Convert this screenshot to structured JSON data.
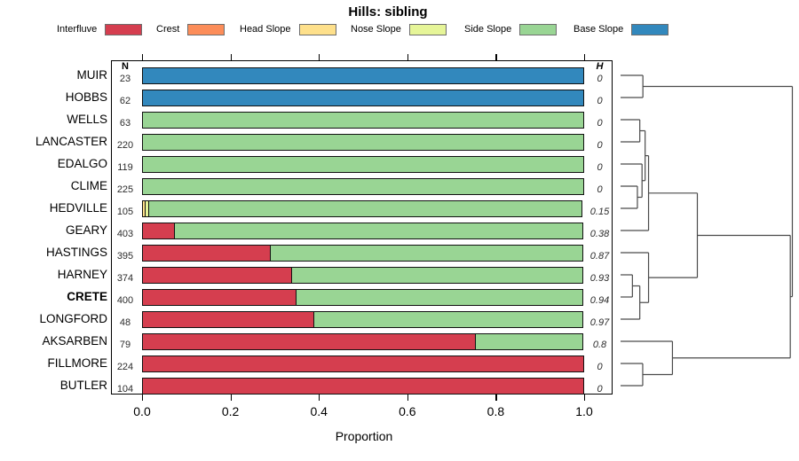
{
  "title": "Hills: sibling",
  "xlabel": "Proportion",
  "columns": {
    "n_header": "N",
    "h_header": "H"
  },
  "x_ticks": [
    "0.0",
    "0.2",
    "0.4",
    "0.6",
    "0.8",
    "1.0"
  ],
  "legend": [
    {
      "label": "Interfluve",
      "color": "#D53E4F"
    },
    {
      "label": "Crest",
      "color": "#FC8D59"
    },
    {
      "label": "Head Slope",
      "color": "#FEE08B"
    },
    {
      "label": "Nose Slope",
      "color": "#E6F598"
    },
    {
      "label": "Side Slope",
      "color": "#99D594"
    },
    {
      "label": "Base Slope",
      "color": "#3288BD"
    }
  ],
  "chart_data": {
    "type": "bar",
    "orientation": "horizontal-stacked",
    "title": "Hills: sibling",
    "xlabel": "Proportion",
    "xlim": [
      0,
      1
    ],
    "grid": false,
    "series_classes": [
      "Interfluve",
      "Crest",
      "Head Slope",
      "Nose Slope",
      "Side Slope",
      "Base Slope"
    ],
    "rows": [
      {
        "name": "MUIR",
        "n": 23,
        "h": "0",
        "bold": false,
        "segments": [
          {
            "class": "Base Slope",
            "value": 1.0
          }
        ]
      },
      {
        "name": "HOBBS",
        "n": 62,
        "h": "0",
        "bold": false,
        "segments": [
          {
            "class": "Base Slope",
            "value": 1.0
          }
        ]
      },
      {
        "name": "WELLS",
        "n": 63,
        "h": "0",
        "bold": false,
        "segments": [
          {
            "class": "Side Slope",
            "value": 1.0
          }
        ]
      },
      {
        "name": "LANCASTER",
        "n": 220,
        "h": "0",
        "bold": false,
        "segments": [
          {
            "class": "Side Slope",
            "value": 1.0
          }
        ]
      },
      {
        "name": "EDALGO",
        "n": 119,
        "h": "0",
        "bold": false,
        "segments": [
          {
            "class": "Side Slope",
            "value": 1.0
          }
        ]
      },
      {
        "name": "CLIME",
        "n": 225,
        "h": "0",
        "bold": false,
        "segments": [
          {
            "class": "Side Slope",
            "value": 1.0
          }
        ]
      },
      {
        "name": "HEDVILLE",
        "n": 105,
        "h": "0.15",
        "bold": false,
        "segments": [
          {
            "class": "Head Slope",
            "value": 0.008
          },
          {
            "class": "Nose Slope",
            "value": 0.01
          },
          {
            "class": "Side Slope",
            "value": 0.982
          }
        ]
      },
      {
        "name": "GEARY",
        "n": 403,
        "h": "0.38",
        "bold": false,
        "segments": [
          {
            "class": "Interfluve",
            "value": 0.074
          },
          {
            "class": "Side Slope",
            "value": 0.926
          }
        ]
      },
      {
        "name": "HASTINGS",
        "n": 395,
        "h": "0.87",
        "bold": false,
        "segments": [
          {
            "class": "Interfluve",
            "value": 0.292
          },
          {
            "class": "Side Slope",
            "value": 0.708
          }
        ]
      },
      {
        "name": "HARNEY",
        "n": 374,
        "h": "0.93",
        "bold": false,
        "segments": [
          {
            "class": "Interfluve",
            "value": 0.34
          },
          {
            "class": "Side Slope",
            "value": 0.66
          }
        ]
      },
      {
        "name": "CRETE",
        "n": 400,
        "h": "0.94",
        "bold": true,
        "segments": [
          {
            "class": "Interfluve",
            "value": 0.35
          },
          {
            "class": "Side Slope",
            "value": 0.65
          }
        ]
      },
      {
        "name": "LONGFORD",
        "n": 48,
        "h": "0.97",
        "bold": false,
        "segments": [
          {
            "class": "Interfluve",
            "value": 0.39
          },
          {
            "class": "Side Slope",
            "value": 0.61
          }
        ]
      },
      {
        "name": "AKSARBEN",
        "n": 79,
        "h": "0.8",
        "bold": false,
        "segments": [
          {
            "class": "Interfluve",
            "value": 0.755
          },
          {
            "class": "Side Slope",
            "value": 0.245
          }
        ]
      },
      {
        "name": "FILLMORE",
        "n": 224,
        "h": "0",
        "bold": false,
        "segments": [
          {
            "class": "Interfluve",
            "value": 1.0
          }
        ]
      },
      {
        "name": "BUTLER",
        "n": 104,
        "h": "0",
        "bold": false,
        "segments": [
          {
            "class": "Interfluve",
            "value": 1.0
          }
        ]
      }
    ],
    "dendrogram": {
      "h": 1.0,
      "children": [
        {
          "h": 0.13,
          "children": [
            {
              "leaf": "MUIR"
            },
            {
              "leaf": "HOBBS"
            }
          ]
        },
        {
          "h": 0.988,
          "children": [
            {
              "h": 0.447,
              "children": [
                {
                  "h": 0.163,
                  "children": [
                    {
                      "h": 0.143,
                      "children": [
                        {
                          "h": 0.112,
                          "children": [
                            {
                              "leaf": "WELLS"
                            },
                            {
                              "leaf": "LANCASTER"
                            }
                          ]
                        },
                        {
                          "h": 0.125,
                          "children": [
                            {
                              "leaf": "EDALGO"
                            },
                            {
                              "h": 0.098,
                              "children": [
                                {
                                  "leaf": "CLIME"
                                },
                                {
                                  "leaf": "HEDVILLE"
                                }
                              ]
                            }
                          ]
                        }
                      ]
                    },
                    {
                      "leaf": "GEARY"
                    }
                  ]
                },
                {
                  "h": 0.163,
                  "children": [
                    {
                      "leaf": "HASTINGS"
                    },
                    {
                      "h": 0.112,
                      "children": [
                        {
                          "h": 0.069,
                          "children": [
                            {
                              "leaf": "HARNEY"
                            },
                            {
                              "leaf": "CRETE"
                            }
                          ]
                        },
                        {
                          "leaf": "LONGFORD"
                        }
                      ]
                    }
                  ]
                }
              ]
            },
            {
              "h": 0.302,
              "children": [
                {
                  "leaf": "AKSARBEN"
                },
                {
                  "h": 0.129,
                  "children": [
                    {
                      "leaf": "FILLMORE"
                    },
                    {
                      "leaf": "BUTLER"
                    }
                  ]
                }
              ]
            }
          ]
        }
      ]
    }
  }
}
